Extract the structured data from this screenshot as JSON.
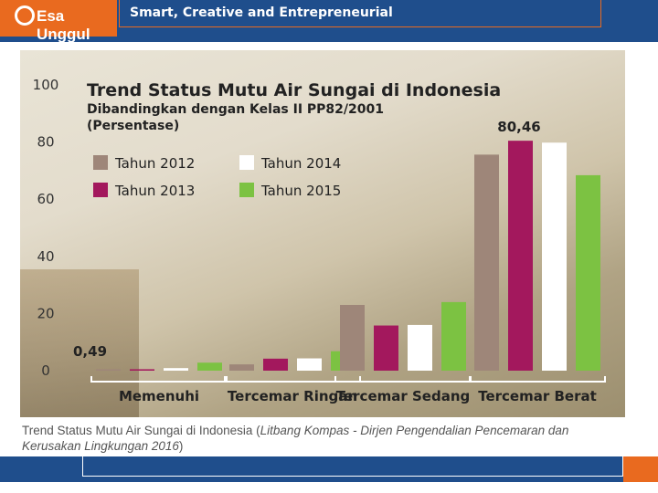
{
  "header": {
    "logo_text": "Esa Unggul",
    "tagline": "Smart, Creative and Entrepreneurial"
  },
  "chart_data": {
    "type": "bar",
    "title": "Trend Status Mutu Air Sungai di Indonesia",
    "subtitle_line1": "Dibandingkan dengan Kelas II PP82/2001",
    "subtitle_line2": "(Persentase)",
    "categories": [
      "Memenuhi",
      "Tercemar Ringan",
      "Tercemar Sedang",
      "Tercemar Berat"
    ],
    "series": [
      {
        "name": "Tahun 2012",
        "color": "#9e8679",
        "values": [
          0.49,
          2.2,
          23.0,
          75.6
        ]
      },
      {
        "name": "Tahun 2013",
        "color": "#a3185d",
        "values": [
          0.5,
          4.2,
          15.8,
          80.46
        ]
      },
      {
        "name": "Tahun 2014",
        "color": "#ffffff",
        "values": [
          0.9,
          4.3,
          16.0,
          79.8
        ]
      },
      {
        "name": "Tahun 2015",
        "color": "#7cc242",
        "values": [
          2.8,
          6.8,
          24.0,
          68.4
        ]
      }
    ],
    "ylim": [
      0,
      100
    ],
    "yticks": [
      "0",
      "20",
      "40",
      "60",
      "80",
      "100"
    ],
    "data_labels": {
      "first": "0,49",
      "peak": "80,46"
    },
    "legend_position": "top-left",
    "grid": false
  },
  "caption": {
    "text_a": "Trend Status Mutu Air Sungai di Indonesia (",
    "text_italic": "Litbang Kompas - Dirjen Pengendalian Pencemaran dan Kerusakan Lingkungan 2016",
    "text_b": ")"
  }
}
